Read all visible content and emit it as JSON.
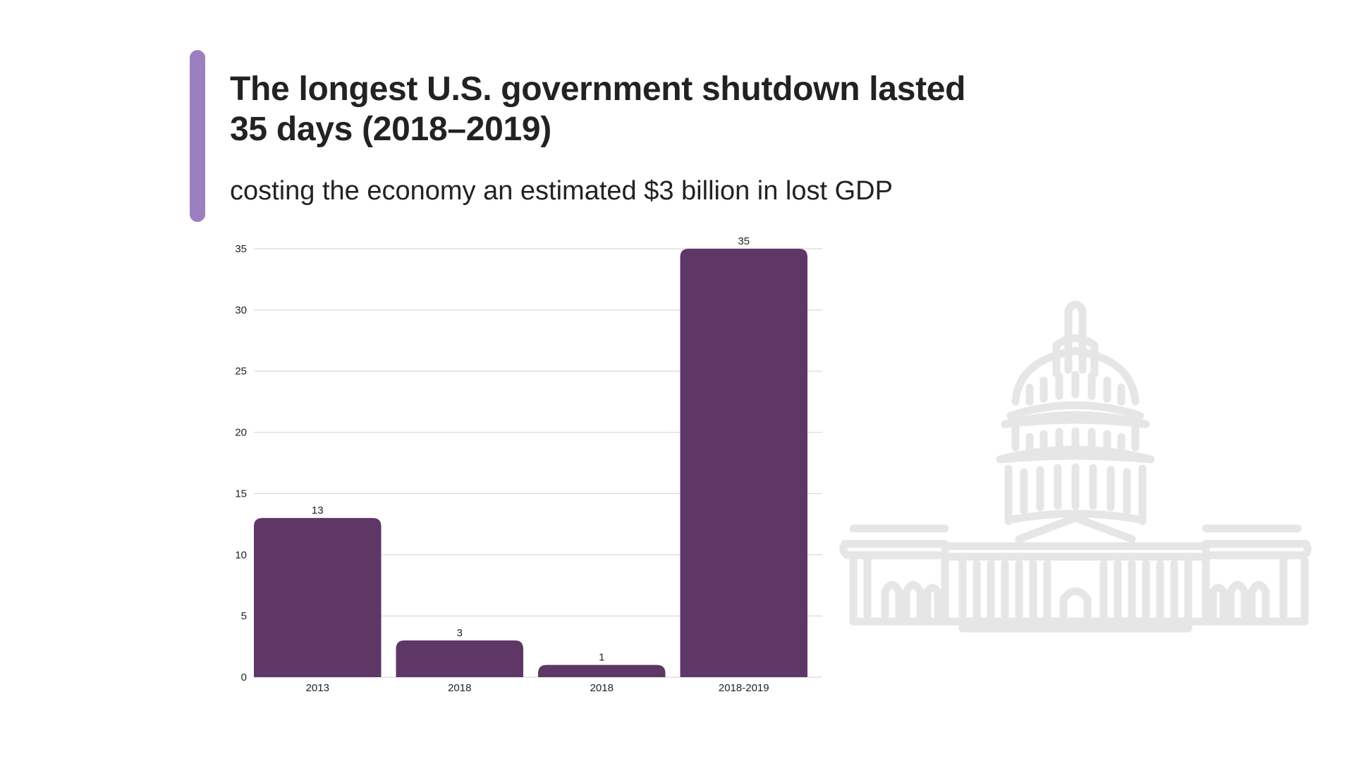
{
  "title": "The longest U.S. government shutdown lasted 35 days (2018–2019)",
  "subtitle": "costing the economy an estimated $3 billion in lost GDP",
  "colors": {
    "accent": "#9b7fbe",
    "bar": "#5e3766",
    "grid": "#d9d9d9",
    "text": "#222222",
    "illustration": "#e6e6e6"
  },
  "illustration": "capitol-building-icon",
  "chart_data": {
    "type": "bar",
    "title": "",
    "xlabel": "",
    "ylabel": "",
    "categories": [
      "2013",
      "2018",
      "2018",
      "2018-2019"
    ],
    "values": [
      13,
      3,
      1,
      35
    ],
    "ylim": [
      0,
      35
    ],
    "yticks": [
      0,
      5,
      10,
      15,
      20,
      25,
      30,
      35
    ],
    "grid": true,
    "legend": "none"
  }
}
